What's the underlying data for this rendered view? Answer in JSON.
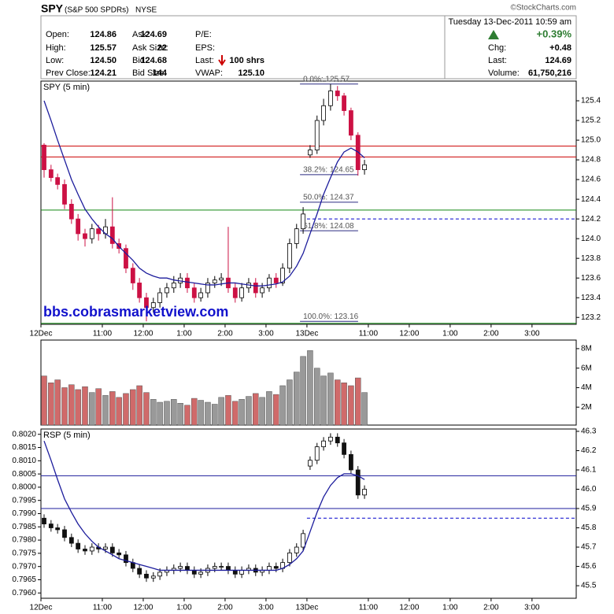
{
  "header": {
    "symbol": "SPY",
    "name": "(S&P 500 SPDRs)",
    "exchange": "NYSE",
    "credit": "©StockCharts.com",
    "date": "Tuesday  13-Dec-2011  10:59 am",
    "columns": [
      [
        {
          "label": "Open:",
          "value": "124.86"
        },
        {
          "label": "High:",
          "value": "125.57"
        },
        {
          "label": "Low:",
          "value": "124.50"
        },
        {
          "label": "Prev Close:",
          "value": "124.21"
        }
      ],
      [
        {
          "label": "Ask:",
          "value": "124.69"
        },
        {
          "label": "Ask Size:",
          "value": "22"
        },
        {
          "label": "Bid:",
          "value": "124.68"
        },
        {
          "label": "Bid Size:",
          "value": "144"
        }
      ],
      [
        {
          "label": "P/E:"
        },
        {
          "label": "EPS:"
        },
        {
          "label": "Last:",
          "value": "100 shrs"
        },
        {
          "label": "VWAP:",
          "value": "125.10"
        }
      ]
    ],
    "change_pct": "+0.39%",
    "summary": [
      {
        "label": "Chg:",
        "value": "+0.48"
      },
      {
        "label": "Last:",
        "value": "124.69"
      },
      {
        "label": "Volume:",
        "value": "61,750,216"
      }
    ]
  },
  "chart_data": [
    {
      "type": "candlestick",
      "title": "SPY (5 min)",
      "watermark": "bbs.cobrasmarketview.com",
      "x": [
        0,
        0.17,
        0.33,
        0.5,
        0.67,
        0.83,
        1,
        1.17,
        1.33,
        1.5,
        1.67,
        1.83,
        2,
        2.17,
        2.33,
        2.5,
        2.67,
        2.83,
        3,
        3.17,
        3.33,
        3.5,
        3.67,
        3.83,
        4,
        4.17,
        4.33,
        4.5,
        4.67,
        4.83,
        5,
        5.17,
        5.33,
        5.5,
        5.67,
        5.83,
        6,
        6.17,
        6.33,
        6.5,
        6.67,
        6.83,
        7,
        7.17,
        7.33,
        7.5,
        7.67,
        7.83
      ],
      "open": [
        124.95,
        124.7,
        124.62,
        124.55,
        124.35,
        124.2,
        124.05,
        124.0,
        124.1,
        124.05,
        124.12,
        123.95,
        123.9,
        123.7,
        123.55,
        123.4,
        123.3,
        123.35,
        123.45,
        123.5,
        123.55,
        123.6,
        123.5,
        123.4,
        123.45,
        123.55,
        123.58,
        123.6,
        123.5,
        123.4,
        123.5,
        123.55,
        123.45,
        123.5,
        123.6,
        123.55,
        123.7,
        123.95,
        124.1,
        124.85,
        124.9,
        125.2,
        125.35,
        125.5,
        125.45,
        125.3,
        125.05,
        124.7
      ],
      "high": [
        124.97,
        124.75,
        124.66,
        124.6,
        124.4,
        124.25,
        124.1,
        124.15,
        124.14,
        124.2,
        124.42,
        124.0,
        123.94,
        123.75,
        123.6,
        123.45,
        123.4,
        123.5,
        123.55,
        123.62,
        123.65,
        123.65,
        123.55,
        123.5,
        123.6,
        123.62,
        123.65,
        124.12,
        123.55,
        123.55,
        123.6,
        123.6,
        123.55,
        123.64,
        123.65,
        123.75,
        124.0,
        124.15,
        124.32,
        124.95,
        125.25,
        125.42,
        125.57,
        125.55,
        125.48,
        125.33,
        125.08,
        124.8
      ],
      "low": [
        124.62,
        124.58,
        124.5,
        124.3,
        124.15,
        123.98,
        123.92,
        123.95,
        123.98,
        124.0,
        123.9,
        123.85,
        123.65,
        123.48,
        123.35,
        123.16,
        123.25,
        123.3,
        123.4,
        123.45,
        123.5,
        123.45,
        123.35,
        123.36,
        123.4,
        123.5,
        123.52,
        123.45,
        123.35,
        123.36,
        123.45,
        123.4,
        123.4,
        123.46,
        123.5,
        123.52,
        123.65,
        123.9,
        124.05,
        124.82,
        124.86,
        125.15,
        125.3,
        125.4,
        125.25,
        125.0,
        124.64,
        124.65
      ],
      "close": [
        124.7,
        124.62,
        124.55,
        124.35,
        124.2,
        124.05,
        124.0,
        124.1,
        124.05,
        124.12,
        123.95,
        123.9,
        123.7,
        123.55,
        123.4,
        123.3,
        123.35,
        123.45,
        123.5,
        123.55,
        123.6,
        123.5,
        123.4,
        123.45,
        123.55,
        123.58,
        123.6,
        123.5,
        123.4,
        123.5,
        123.55,
        123.45,
        123.5,
        123.6,
        123.55,
        123.7,
        123.95,
        124.1,
        124.25,
        124.9,
        125.2,
        125.35,
        125.5,
        125.45,
        125.3,
        125.05,
        124.7,
        124.75
      ],
      "overlay": {
        "color": "#1c1c9c",
        "values": [
          125.4,
          125.2,
          125.0,
          124.8,
          124.6,
          124.45,
          124.3,
          124.2,
          124.12,
          124.05,
          124.0,
          123.92,
          123.85,
          123.78,
          123.7,
          123.65,
          123.62,
          123.6,
          123.6,
          123.58,
          123.57,
          123.56,
          123.55,
          123.54,
          123.53,
          123.53,
          123.54,
          123.55,
          123.55,
          123.54,
          123.53,
          123.52,
          123.52,
          123.53,
          123.54,
          123.56,
          123.62,
          123.72,
          123.85,
          124.05,
          124.25,
          124.45,
          124.62,
          124.78,
          124.88,
          124.92,
          124.88,
          124.82
        ]
      },
      "hlines": [
        {
          "value": 124.94,
          "color": "#cc0000"
        },
        {
          "value": 124.83,
          "color": "#cc0000"
        },
        {
          "value": 124.29,
          "color": "#118811"
        },
        {
          "value": 124.2,
          "color": "#0000cc",
          "dashed": true,
          "from": 6.5
        },
        {
          "value": 123.14,
          "color": "#118811"
        }
      ],
      "fib": {
        "color": "#2a2a80",
        "from": 6.33,
        "to": 7.75,
        "levels": [
          {
            "value": 125.57,
            "label": "0.0%: 125.57"
          },
          {
            "value": 124.65,
            "label": "38.2%: 124.65"
          },
          {
            "value": 124.37,
            "label": "50.0%: 124.37"
          },
          {
            "value": 124.08,
            "label": "61.8%: 124.08"
          },
          {
            "value": 123.16,
            "label": "100.0%: 123.16"
          }
        ]
      },
      "xlim": [
        0,
        13.08
      ],
      "xticks": [
        {
          "value": 0,
          "label": "12Dec"
        },
        {
          "value": 1.5,
          "label": "11:00"
        },
        {
          "value": 2.5,
          "label": "12:00"
        },
        {
          "value": 3.5,
          "label": "1:00"
        },
        {
          "value": 4.5,
          "label": "2:00"
        },
        {
          "value": 5.5,
          "label": "3:00"
        },
        {
          "value": 6.5,
          "label": "13Dec"
        },
        {
          "value": 8,
          "label": "11:00"
        },
        {
          "value": 9,
          "label": "12:00"
        },
        {
          "value": 10,
          "label": "1:00"
        },
        {
          "value": 11,
          "label": "2:00"
        },
        {
          "value": 12,
          "label": "3:00"
        }
      ],
      "ylim": [
        123.13,
        125.6
      ],
      "yticks": [
        125.4,
        125.2,
        {
          "value": 125,
          "label": "125.0"
        },
        124.8,
        124.6,
        124.4,
        124.2,
        {
          "value": 124,
          "label": "124.0"
        },
        123.8,
        123.6,
        123.4,
        123.2
      ],
      "up_color": "#ffffff",
      "down_color": "#cc1144"
    },
    {
      "type": "bar",
      "x": [
        0,
        0.17,
        0.33,
        0.5,
        0.67,
        0.83,
        1,
        1.17,
        1.33,
        1.5,
        1.67,
        1.83,
        2,
        2.17,
        2.33,
        2.5,
        2.67,
        2.83,
        3,
        3.17,
        3.33,
        3.5,
        3.67,
        3.83,
        4,
        4.17,
        4.33,
        4.5,
        4.67,
        4.83,
        5,
        5.17,
        5.33,
        5.5,
        5.67,
        5.83,
        6,
        6.17,
        6.33,
        6.5,
        6.67,
        6.83,
        7,
        7.17,
        7.33,
        7.5,
        7.67,
        7.83
      ],
      "values": [
        5.2,
        4.5,
        4.8,
        4.0,
        4.3,
        3.8,
        4.1,
        3.5,
        3.9,
        3.2,
        3.6,
        3.0,
        3.4,
        3.8,
        4.2,
        3.5,
        2.8,
        2.5,
        2.6,
        2.8,
        2.4,
        2.2,
        2.9,
        2.7,
        2.5,
        2.3,
        3.0,
        3.2,
        2.6,
        2.8,
        3.1,
        3.4,
        3.0,
        3.6,
        3.3,
        4.2,
        4.8,
        5.6,
        7.2,
        7.8,
        6.0,
        5.2,
        5.5,
        4.8,
        4.5,
        4.2,
        5.0,
        3.5
      ],
      "xlim": [
        0,
        13.08
      ],
      "ylim": [
        0.16,
        8.88
      ],
      "yticks": [
        {
          "value": 8,
          "label": "8M"
        },
        {
          "value": 6,
          "label": "6M"
        },
        {
          "value": 4,
          "label": "4M"
        },
        {
          "value": 2,
          "label": "2M"
        }
      ],
      "up_color": "#999999",
      "down_color": "#d06a6a"
    },
    {
      "type": "candlestick",
      "title": "RSP (5 min)",
      "x": [
        0,
        0.17,
        0.33,
        0.5,
        0.67,
        0.83,
        1,
        1.17,
        1.33,
        1.5,
        1.67,
        1.83,
        2,
        2.17,
        2.33,
        2.5,
        2.67,
        2.83,
        3,
        3.17,
        3.33,
        3.5,
        3.67,
        3.83,
        4,
        4.17,
        4.33,
        4.5,
        4.67,
        4.83,
        5,
        5.17,
        5.33,
        5.5,
        5.67,
        5.83,
        6,
        6.17,
        6.33,
        6.5,
        6.67,
        6.83,
        7,
        7.17,
        7.33,
        7.5,
        7.67,
        7.83
      ],
      "open": [
        45.85,
        45.82,
        45.8,
        45.79,
        45.75,
        45.72,
        45.69,
        45.68,
        45.7,
        45.69,
        45.7,
        45.67,
        45.66,
        45.62,
        45.59,
        45.56,
        45.54,
        45.55,
        45.57,
        45.58,
        45.59,
        45.6,
        45.58,
        45.56,
        45.57,
        45.59,
        45.6,
        45.6,
        45.58,
        45.56,
        45.58,
        45.59,
        45.57,
        45.58,
        45.6,
        45.59,
        45.62,
        45.67,
        45.7,
        46.12,
        46.15,
        46.22,
        46.25,
        46.27,
        46.24,
        46.18,
        46.1,
        45.97
      ],
      "high": [
        45.87,
        45.84,
        45.82,
        45.81,
        45.77,
        45.74,
        45.71,
        45.72,
        45.72,
        45.72,
        45.72,
        45.69,
        45.68,
        45.64,
        45.61,
        45.58,
        45.57,
        45.59,
        45.6,
        45.61,
        45.62,
        45.62,
        45.6,
        45.59,
        45.61,
        45.62,
        45.62,
        45.62,
        45.6,
        45.6,
        45.61,
        45.61,
        45.6,
        45.62,
        45.62,
        45.64,
        45.69,
        45.72,
        45.79,
        46.17,
        46.24,
        46.27,
        46.29,
        46.29,
        46.26,
        46.2,
        46.12,
        46.02
      ],
      "low": [
        45.8,
        45.78,
        45.77,
        45.73,
        45.7,
        45.67,
        45.66,
        45.66,
        45.67,
        45.67,
        45.65,
        45.64,
        45.6,
        45.57,
        45.54,
        45.52,
        45.52,
        45.53,
        45.55,
        45.56,
        45.57,
        45.56,
        45.54,
        45.54,
        45.55,
        45.57,
        45.58,
        45.56,
        45.54,
        45.54,
        45.56,
        45.55,
        45.55,
        45.56,
        45.57,
        45.57,
        45.6,
        45.65,
        45.68,
        46.1,
        46.13,
        46.2,
        46.23,
        46.22,
        46.16,
        46.08,
        45.95,
        45.95
      ],
      "close": [
        45.82,
        45.8,
        45.79,
        45.75,
        45.72,
        45.69,
        45.68,
        45.7,
        45.69,
        45.7,
        45.67,
        45.66,
        45.62,
        45.59,
        45.56,
        45.54,
        45.55,
        45.57,
        45.58,
        45.59,
        45.6,
        45.58,
        45.56,
        45.57,
        45.59,
        45.6,
        45.6,
        45.58,
        45.56,
        45.58,
        45.59,
        45.57,
        45.58,
        45.6,
        45.59,
        45.62,
        45.67,
        45.7,
        45.77,
        46.15,
        46.22,
        46.25,
        46.27,
        46.24,
        46.18,
        46.1,
        45.97,
        46.0
      ],
      "overlay": {
        "color": "#1c1c9c",
        "values": [
          46.25,
          46.15,
          46.05,
          45.95,
          45.88,
          45.82,
          45.77,
          45.73,
          45.7,
          45.68,
          45.66,
          45.64,
          45.63,
          45.62,
          45.61,
          45.6,
          45.59,
          45.58,
          45.58,
          45.58,
          45.58,
          45.58,
          45.58,
          45.58,
          45.58,
          45.58,
          45.58,
          45.58,
          45.58,
          45.58,
          45.58,
          45.58,
          45.58,
          45.58,
          45.58,
          45.59,
          45.61,
          45.64,
          45.68,
          45.78,
          45.88,
          45.96,
          46.02,
          46.06,
          46.08,
          46.08,
          46.07,
          46.05
        ]
      },
      "hlines": [
        {
          "value": 46.07,
          "color": "#1c1c9c"
        },
        {
          "value": 45.9,
          "color": "#1c1c9c"
        },
        {
          "value": 45.85,
          "color": "#0000cc",
          "dashed": true,
          "from": 6.5
        }
      ],
      "xlim": [
        0,
        13.08
      ],
      "xticks": [
        {
          "value": 0,
          "label": "12Dec"
        },
        {
          "value": 1.5,
          "label": "11:00"
        },
        {
          "value": 2.5,
          "label": "12:00"
        },
        {
          "value": 3.5,
          "label": "1:00"
        },
        {
          "value": 4.5,
          "label": "2:00"
        },
        {
          "value": 5.5,
          "label": "3:00"
        },
        {
          "value": 6.5,
          "label": "13Dec"
        },
        {
          "value": 8,
          "label": "11:00"
        },
        {
          "value": 9,
          "label": "12:00"
        },
        {
          "value": 10,
          "label": "1:00"
        },
        {
          "value": 11,
          "label": "2:00"
        },
        {
          "value": 12,
          "label": "3:00"
        }
      ],
      "ylim": [
        45.435,
        46.312
      ],
      "yticks": [
        46.3,
        46.2,
        46.1,
        {
          "value": 46,
          "label": "46.0"
        },
        45.9,
        45.8,
        45.7,
        45.6,
        45.5
      ],
      "y2lim": [
        0.7958,
        0.8022
      ],
      "y2ticks": [
        {
          "value": 0.802,
          "label": "0.8020"
        },
        0.8015,
        {
          "value": 0.801,
          "label": "0.8010"
        },
        0.8005,
        {
          "value": 0.8,
          "label": "0.8000"
        },
        0.7995,
        {
          "value": 0.799,
          "label": "0.7990"
        },
        0.7985,
        {
          "value": 0.798,
          "label": "0.7980"
        },
        0.7975,
        {
          "value": 0.797,
          "label": "0.7970"
        },
        0.7965,
        {
          "value": 0.796,
          "label": "0.7960"
        }
      ],
      "up_color": "#ffffff",
      "down_color": "#111111"
    }
  ]
}
